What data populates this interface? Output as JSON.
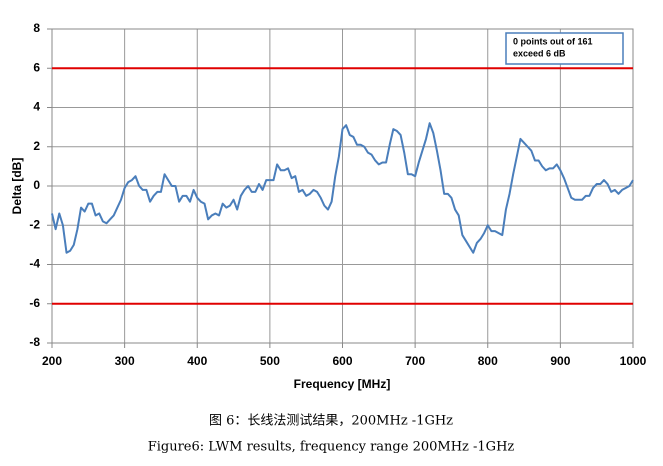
{
  "chart_data": {
    "type": "line",
    "x_label": "Frequency [MHz]",
    "y_label": "Delta [dB]",
    "x": [
      200,
      205,
      210,
      215,
      220,
      225,
      230,
      235,
      240,
      245,
      250,
      255,
      260,
      265,
      270,
      275,
      280,
      285,
      290,
      295,
      300,
      305,
      310,
      315,
      320,
      325,
      330,
      335,
      340,
      345,
      350,
      355,
      360,
      365,
      370,
      375,
      380,
      385,
      390,
      395,
      400,
      405,
      410,
      415,
      420,
      425,
      430,
      435,
      440,
      445,
      450,
      455,
      460,
      465,
      470,
      475,
      480,
      485,
      490,
      495,
      500,
      505,
      510,
      515,
      520,
      525,
      530,
      535,
      540,
      545,
      550,
      555,
      560,
      565,
      570,
      575,
      580,
      585,
      590,
      595,
      600,
      605,
      610,
      615,
      620,
      625,
      630,
      635,
      640,
      645,
      650,
      655,
      660,
      665,
      670,
      675,
      680,
      685,
      690,
      695,
      700,
      705,
      710,
      715,
      720,
      725,
      730,
      735,
      740,
      745,
      750,
      755,
      760,
      765,
      770,
      775,
      780,
      785,
      790,
      795,
      800,
      805,
      810,
      815,
      820,
      825,
      830,
      835,
      840,
      845,
      850,
      855,
      860,
      865,
      870,
      875,
      880,
      885,
      890,
      895,
      900,
      905,
      910,
      915,
      920,
      925,
      930,
      935,
      940,
      945,
      950,
      955,
      960,
      965,
      970,
      975,
      980,
      985,
      990,
      995,
      1000
    ],
    "series": [
      {
        "color": "#4a7ebb",
        "values": [
          -1.4,
          -2.2,
          -1.4,
          -2.0,
          -3.4,
          -3.3,
          -3.0,
          -2.2,
          -1.1,
          -1.3,
          -0.9,
          -0.9,
          -1.5,
          -1.4,
          -1.8,
          -1.9,
          -1.7,
          -1.5,
          -1.1,
          -0.7,
          -0.1,
          0.2,
          0.3,
          0.5,
          0.0,
          -0.2,
          -0.2,
          -0.8,
          -0.5,
          -0.3,
          -0.3,
          0.6,
          0.3,
          0.0,
          0.0,
          -0.8,
          -0.5,
          -0.5,
          -0.8,
          -0.2,
          -0.6,
          -0.8,
          -0.9,
          -1.7,
          -1.5,
          -1.4,
          -1.5,
          -0.9,
          -1.1,
          -1.0,
          -0.7,
          -1.2,
          -0.5,
          -0.2,
          0.0,
          -0.3,
          -0.3,
          0.1,
          -0.2,
          0.3,
          0.3,
          0.3,
          1.1,
          0.8,
          0.8,
          0.9,
          0.4,
          0.5,
          -0.3,
          -0.2,
          -0.5,
          -0.4,
          -0.2,
          -0.3,
          -0.6,
          -1.0,
          -1.2,
          -0.8,
          0.5,
          1.5,
          2.9,
          3.1,
          2.6,
          2.5,
          2.1,
          2.1,
          2.0,
          1.7,
          1.6,
          1.3,
          1.1,
          1.2,
          1.2,
          2.1,
          2.9,
          2.8,
          2.6,
          1.7,
          0.6,
          0.6,
          0.5,
          1.2,
          1.8,
          2.4,
          3.2,
          2.7,
          1.8,
          0.8,
          -0.4,
          -0.4,
          -0.6,
          -1.2,
          -1.5,
          -2.5,
          -2.8,
          -3.1,
          -3.4,
          -2.9,
          -2.7,
          -2.4,
          -2.0,
          -2.3,
          -2.3,
          -2.4,
          -2.5,
          -1.2,
          -0.4,
          0.6,
          1.5,
          2.4,
          2.2,
          2.0,
          1.8,
          1.3,
          1.3,
          1.0,
          0.8,
          0.9,
          0.9,
          1.1,
          0.8,
          0.4,
          -0.1,
          -0.6,
          -0.7,
          -0.7,
          -0.7,
          -0.5,
          -0.5,
          -0.1,
          0.1,
          0.1,
          0.3,
          0.1,
          -0.3,
          -0.2,
          -0.4,
          -0.2,
          -0.1,
          0.0,
          0.3
        ]
      }
    ],
    "xlim": [
      200,
      1000
    ],
    "xticks": [
      200,
      300,
      400,
      500,
      600,
      700,
      800,
      900,
      1000
    ],
    "ylim": [
      -8,
      8
    ],
    "yticks": [
      -8,
      -6,
      -4,
      -2,
      0,
      2,
      4,
      6,
      8
    ],
    "grid": true,
    "reference_lines": {
      "color": "#e00000",
      "values": [
        6,
        -6
      ]
    },
    "annotation": [
      "0 points out of 161",
      "exceed 6 dB"
    ]
  },
  "captions": [
    "图 6：长线法测试结果，200MHz -1GHz",
    "Figure6:    LWM results, frequency range 200MHz -1GHz"
  ]
}
